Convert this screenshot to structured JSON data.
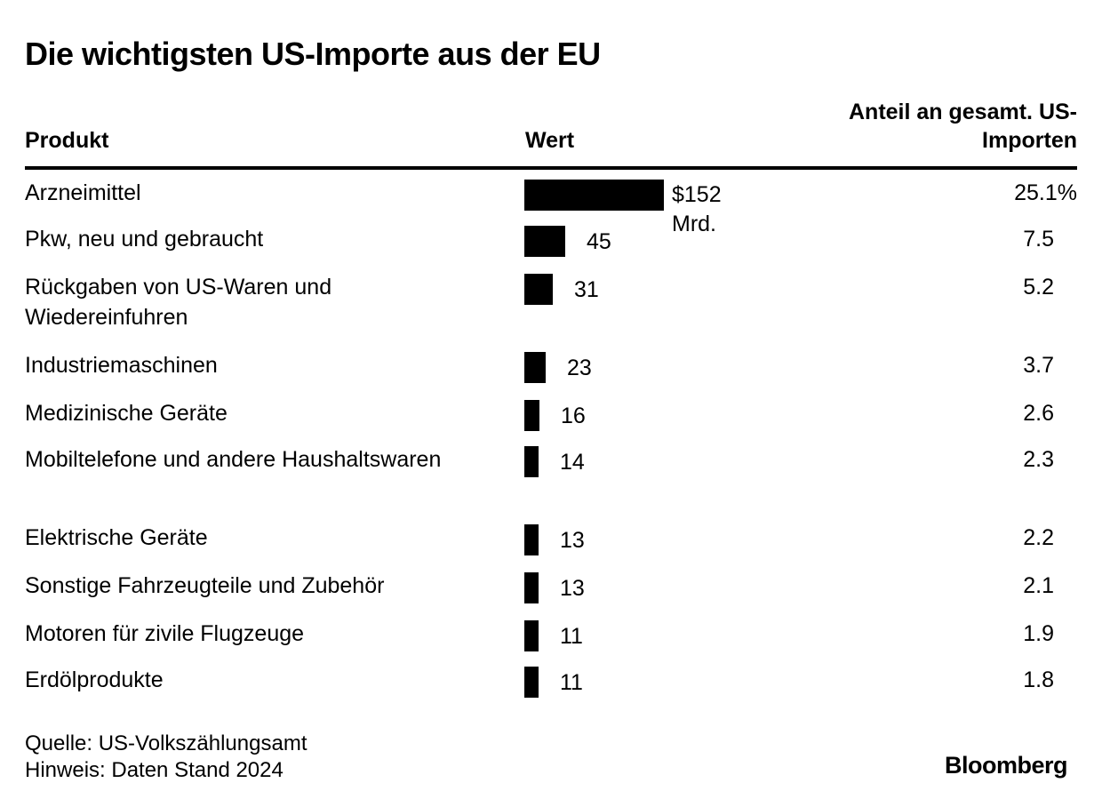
{
  "title": "Die wichtigsten US-Importe aus der EU",
  "headers": {
    "product": "Produkt",
    "value": "Wert",
    "share": "Anteil an gesamt. US-Importen"
  },
  "chart_data": {
    "type": "bar",
    "title": "Die wichtigsten US-Importe aus der EU",
    "categories": [
      "Arzneimittel",
      "Pkw, neu und gebraucht",
      "Rückgaben von US-Waren und Wiedereinfuhren",
      "Industriemaschinen",
      "Medizinische Geräte",
      "Mobiltelefone und andere Haushaltswaren",
      "Elektrische Geräte",
      "Sonstige Fahrzeugteile und Zubehör",
      "Motoren für zivile Flugzeuge",
      "Erdölprodukte"
    ],
    "values": [
      152,
      45,
      31,
      23,
      16,
      14,
      13,
      13,
      11,
      11
    ],
    "value_labels": [
      "$152",
      "45",
      "31",
      "23",
      "16",
      "14",
      "13",
      "13",
      "11",
      "11"
    ],
    "value_unit": "Mrd.",
    "shares": [
      "25.1%",
      "7.5",
      "5.2",
      "3.7",
      "2.6",
      "2.3",
      "2.2",
      "2.1",
      "1.9",
      "1.8"
    ],
    "orientation": "horizontal",
    "grid": false
  },
  "footer": {
    "source": "Quelle: US-Volkszählungsamt",
    "note": "Hinweis: Daten Stand 2024"
  },
  "brand": "Bloomberg"
}
